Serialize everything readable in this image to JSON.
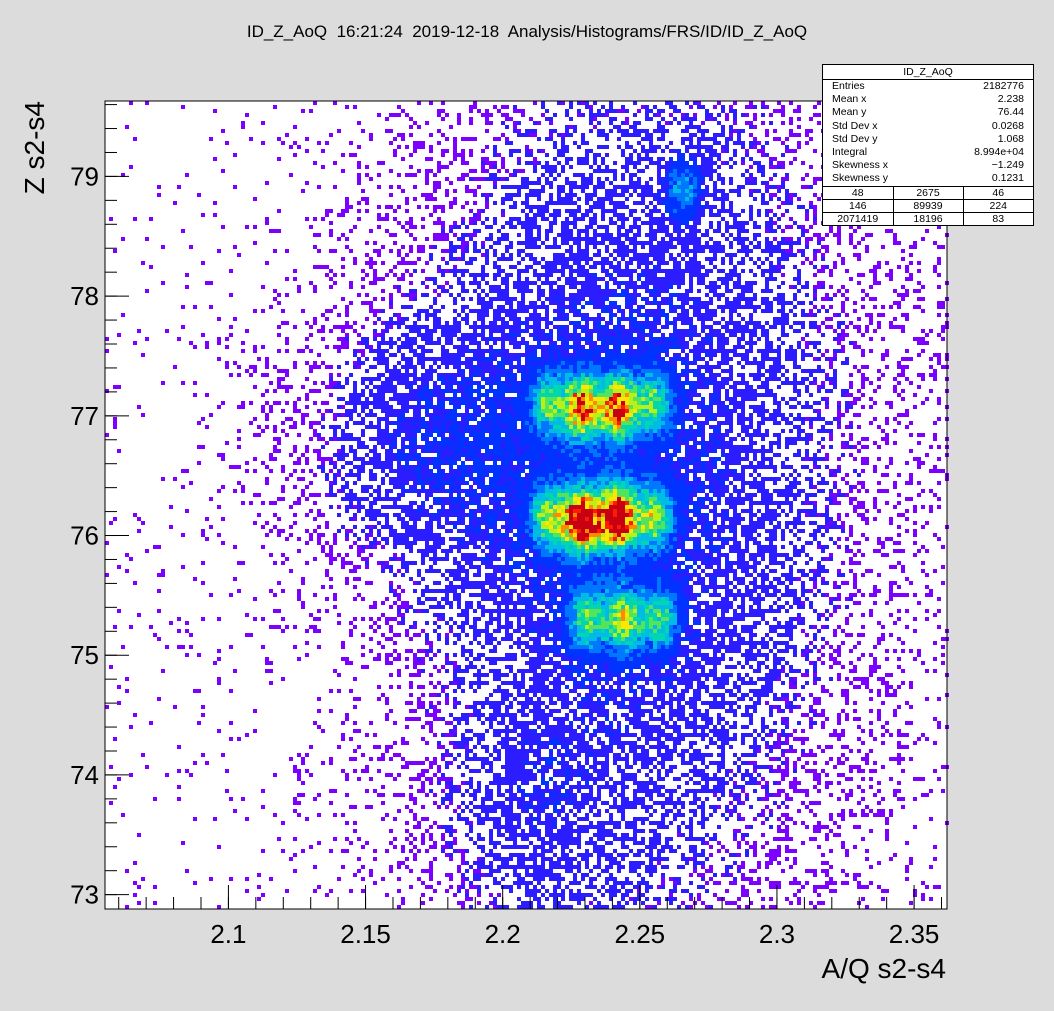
{
  "canvas_title": "ID_Z_AoQ  16:21:24  2019-12-18  Analysis/Histograms/FRS/ID/ID_Z_AoQ",
  "colors": {
    "background": "#dcdcdc",
    "frame": "#ffffff",
    "palette": [
      "#7b00ff",
      "#2b1dff",
      "#0033ff",
      "#0077ff",
      "#00bbe6",
      "#00d7b0",
      "#53e45c",
      "#b8f018",
      "#ffe600",
      "#ff8a00",
      "#ff1a00",
      "#c80014"
    ]
  },
  "stats": {
    "title": "ID_Z_AoQ",
    "rows": [
      {
        "label": "Entries",
        "value": "2182776"
      },
      {
        "label": "Mean x",
        "value": "2.238"
      },
      {
        "label": "Mean y",
        "value": "76.44"
      },
      {
        "label": "Std Dev x",
        "value": "0.0268"
      },
      {
        "label": "Std Dev y",
        "value": "1.068"
      },
      {
        "label": "Integral",
        "value": "8.994e+04"
      },
      {
        "label": "Skewness x",
        "value": "−1.249"
      },
      {
        "label": "Skewness y",
        "value": "0.1231"
      }
    ],
    "overflow_grid": [
      [
        "48",
        "2675",
        "46"
      ],
      [
        "146",
        "89939",
        "224"
      ],
      [
        "2071419",
        "18196",
        "83"
      ]
    ]
  },
  "chart_data": {
    "type": "heatmap",
    "title": "",
    "xlabel": "A/Q s2-s4",
    "ylabel": "Z s2-s4",
    "xlim": [
      2.055,
      2.362
    ],
    "ylim": [
      72.88,
      79.63
    ],
    "x_ticks": [
      {
        "value": 2.1,
        "label": "2.1"
      },
      {
        "value": 2.15,
        "label": "2.15"
      },
      {
        "value": 2.2,
        "label": "2.2"
      },
      {
        "value": 2.25,
        "label": "2.25"
      },
      {
        "value": 2.3,
        "label": "2.3"
      },
      {
        "value": 2.35,
        "label": "2.35"
      }
    ],
    "y_ticks": [
      {
        "value": 73,
        "label": "73"
      },
      {
        "value": 74,
        "label": "74"
      },
      {
        "value": 75,
        "label": "75"
      },
      {
        "value": 76,
        "label": "76"
      },
      {
        "value": 77,
        "label": "77"
      },
      {
        "value": 78,
        "label": "78"
      },
      {
        "value": 79,
        "label": "79"
      }
    ],
    "grid": false,
    "color_scale": "rainbow (low = violet, high = red)",
    "hotspots": [
      {
        "x": 2.229,
        "y": 76.12,
        "intensity": 1.0
      },
      {
        "x": 2.242,
        "y": 76.15,
        "intensity": 0.98
      },
      {
        "x": 2.229,
        "y": 77.07,
        "intensity": 0.72
      },
      {
        "x": 2.242,
        "y": 77.07,
        "intensity": 0.74
      },
      {
        "x": 2.217,
        "y": 76.15,
        "intensity": 0.45
      },
      {
        "x": 2.255,
        "y": 76.15,
        "intensity": 0.45
      },
      {
        "x": 2.217,
        "y": 77.1,
        "intensity": 0.38
      },
      {
        "x": 2.255,
        "y": 77.1,
        "intensity": 0.38
      },
      {
        "x": 2.244,
        "y": 75.3,
        "intensity": 0.5
      },
      {
        "x": 2.231,
        "y": 75.3,
        "intensity": 0.4
      },
      {
        "x": 2.257,
        "y": 75.3,
        "intensity": 0.35
      },
      {
        "x": 2.266,
        "y": 78.9,
        "intensity": 0.22
      }
    ]
  }
}
